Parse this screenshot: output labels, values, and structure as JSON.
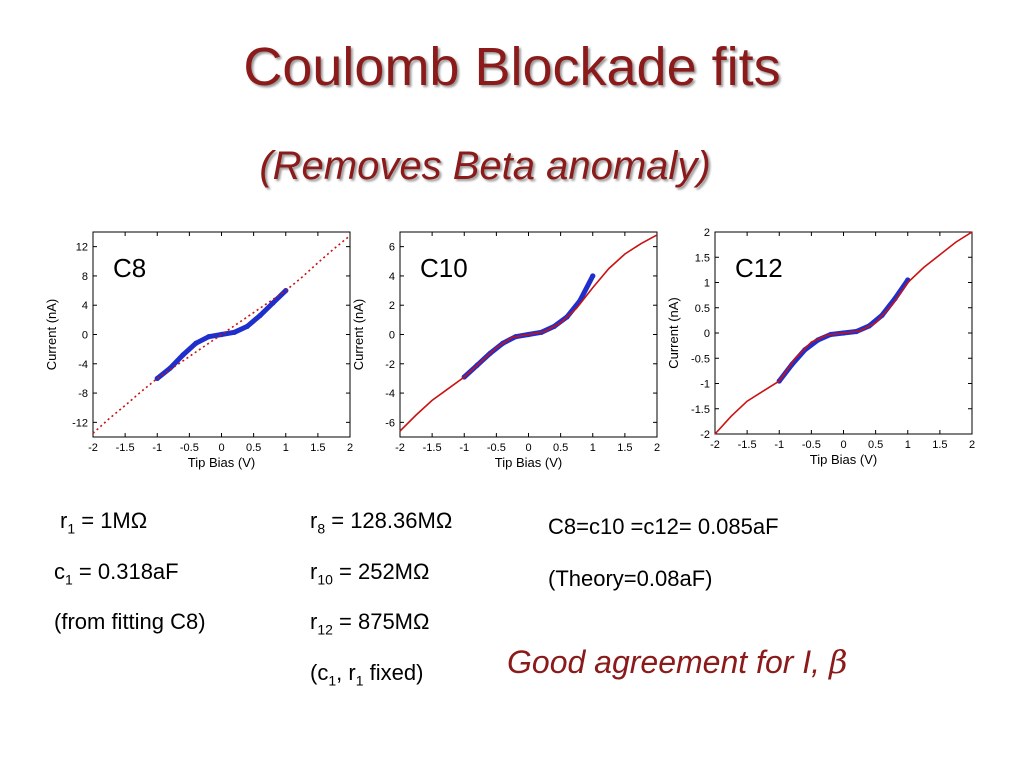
{
  "slide": {
    "title": "Coulomb Blockade fits",
    "subtitle": "(Removes Beta anomaly)"
  },
  "colors": {
    "title": "#8b1a1a",
    "data": "#1f2fcc",
    "fit": "#cc1111"
  },
  "chart_data": [
    {
      "type": "line",
      "label": "C8",
      "xlabel": "Tip Bias (V)",
      "ylabel": "Current (nA)",
      "xlim": [
        -2,
        2
      ],
      "ylim": [
        -14,
        14
      ],
      "xticks": [
        "-2",
        "-1.5",
        "-1",
        "-0.5",
        "0",
        "0.5",
        "1",
        "1.5",
        "2"
      ],
      "yticks": [
        "12",
        "8",
        "4",
        "0",
        "-4",
        "-8",
        "-12"
      ],
      "ytick_values": [
        12,
        8,
        4,
        0,
        -4,
        -8,
        -12
      ],
      "series": [
        {
          "kind": "data",
          "x": [
            -1.0,
            -0.8,
            -0.6,
            -0.4,
            -0.2,
            0.0,
            0.2,
            0.4,
            0.6,
            0.8,
            1.0
          ],
          "y": [
            -6.0,
            -4.6,
            -2.8,
            -1.2,
            -0.3,
            0.0,
            0.3,
            1.1,
            2.6,
            4.3,
            6.0
          ]
        },
        {
          "kind": "fit",
          "style": "dotted",
          "x": [
            -2.0,
            -1.75,
            -1.5,
            -1.25,
            -1.0,
            1.0,
            1.25,
            1.5,
            1.75,
            2.0
          ],
          "y": [
            -13.5,
            -11.5,
            -9.7,
            -7.8,
            -6.0,
            6.0,
            7.8,
            9.8,
            11.7,
            13.5
          ]
        }
      ]
    },
    {
      "type": "line",
      "label": "C10",
      "xlabel": "Tip Bias (V)",
      "ylabel": "Current (nA)",
      "xlim": [
        -2,
        2
      ],
      "ylim": [
        -7,
        7
      ],
      "xticks": [
        "-2",
        "-1.5",
        "-1",
        "-0.5",
        "0",
        "0.5",
        "1",
        "1.5",
        "2"
      ],
      "yticks": [
        "6",
        "4",
        "2",
        "0",
        "-2",
        "-4",
        "-6"
      ],
      "ytick_values": [
        6,
        4,
        2,
        0,
        -2,
        -4,
        -6
      ],
      "series": [
        {
          "kind": "data",
          "x": [
            -1.0,
            -0.8,
            -0.6,
            -0.4,
            -0.2,
            0.0,
            0.2,
            0.4,
            0.6,
            0.8,
            1.0
          ],
          "y": [
            -2.9,
            -2.1,
            -1.3,
            -0.6,
            -0.15,
            0.0,
            0.15,
            0.55,
            1.2,
            2.3,
            4.0
          ]
        },
        {
          "kind": "fit",
          "style": "solid",
          "x": [
            -2.0,
            -1.75,
            -1.5,
            -1.25,
            -1.0,
            -0.75,
            -0.5,
            -0.25,
            0.0,
            0.25,
            0.5,
            0.75,
            1.0,
            1.25,
            1.5,
            1.75,
            2.0
          ],
          "y": [
            -6.6,
            -5.5,
            -4.5,
            -3.7,
            -2.9,
            -1.9,
            -0.9,
            -0.2,
            0.0,
            0.2,
            0.8,
            1.8,
            3.2,
            4.5,
            5.5,
            6.2,
            6.8
          ]
        }
      ]
    },
    {
      "type": "line",
      "label": "C12",
      "xlabel": "Tip Bias (V)",
      "ylabel": "Current (nA)",
      "xlim": [
        -2,
        2
      ],
      "ylim": [
        -2,
        2
      ],
      "xticks": [
        "-2",
        "-1.5",
        "-1",
        "-0.5",
        "0",
        "0.5",
        "1",
        "1.5",
        "2"
      ],
      "yticks": [
        "2",
        "1.5",
        "1",
        "0.5",
        "0",
        "-0.5",
        "-1",
        "-1.5",
        "-2"
      ],
      "ytick_values": [
        2,
        1.5,
        1,
        0.5,
        0,
        -0.5,
        -1,
        -1.5,
        -2
      ],
      "series": [
        {
          "kind": "data",
          "x": [
            -1.0,
            -0.8,
            -0.6,
            -0.4,
            -0.2,
            0.0,
            0.2,
            0.4,
            0.6,
            0.8,
            1.0
          ],
          "y": [
            -0.95,
            -0.62,
            -0.33,
            -0.14,
            -0.03,
            0.0,
            0.03,
            0.14,
            0.35,
            0.68,
            1.05
          ]
        },
        {
          "kind": "fit",
          "style": "solid",
          "x": [
            -2.0,
            -1.75,
            -1.5,
            -1.25,
            -1.0,
            -0.75,
            -0.5,
            -0.25,
            0.0,
            0.25,
            0.5,
            0.75,
            1.0,
            1.25,
            1.5,
            1.75,
            2.0
          ],
          "y": [
            -2.0,
            -1.65,
            -1.35,
            -1.15,
            -0.95,
            -0.5,
            -0.18,
            -0.04,
            0.0,
            0.04,
            0.2,
            0.55,
            1.0,
            1.3,
            1.55,
            1.8,
            2.0
          ]
        }
      ]
    }
  ],
  "params_left": {
    "r1_sym": "r",
    "r1_sub": "1",
    "r1_val": " = 1MΩ",
    "c1_sym": "c",
    "c1_sub": "1",
    "c1_val": " = 0.318aF",
    "note": "(from fitting C8)"
  },
  "params_mid": {
    "r8_sym": "r",
    "r8_sub": "8",
    "r8_val": " = 128.36MΩ",
    "r10_sym": "r",
    "r10_sub": "10",
    "r10_val": " = 252MΩ",
    "r12_sym": "r",
    "r12_sub": "12",
    "r12_val": " = 875MΩ",
    "fixed_a": "(c",
    "fixed_sub1": "1",
    "fixed_b": ", r",
    "fixed_sub2": "1",
    "fixed_c": " fixed)"
  },
  "params_right": {
    "equal": "C8=c10 =c12= 0.085aF",
    "theory": "(Theory=0.08aF)"
  },
  "conclusion": {
    "text": "Good agreement for I, ",
    "symbol": "β"
  }
}
